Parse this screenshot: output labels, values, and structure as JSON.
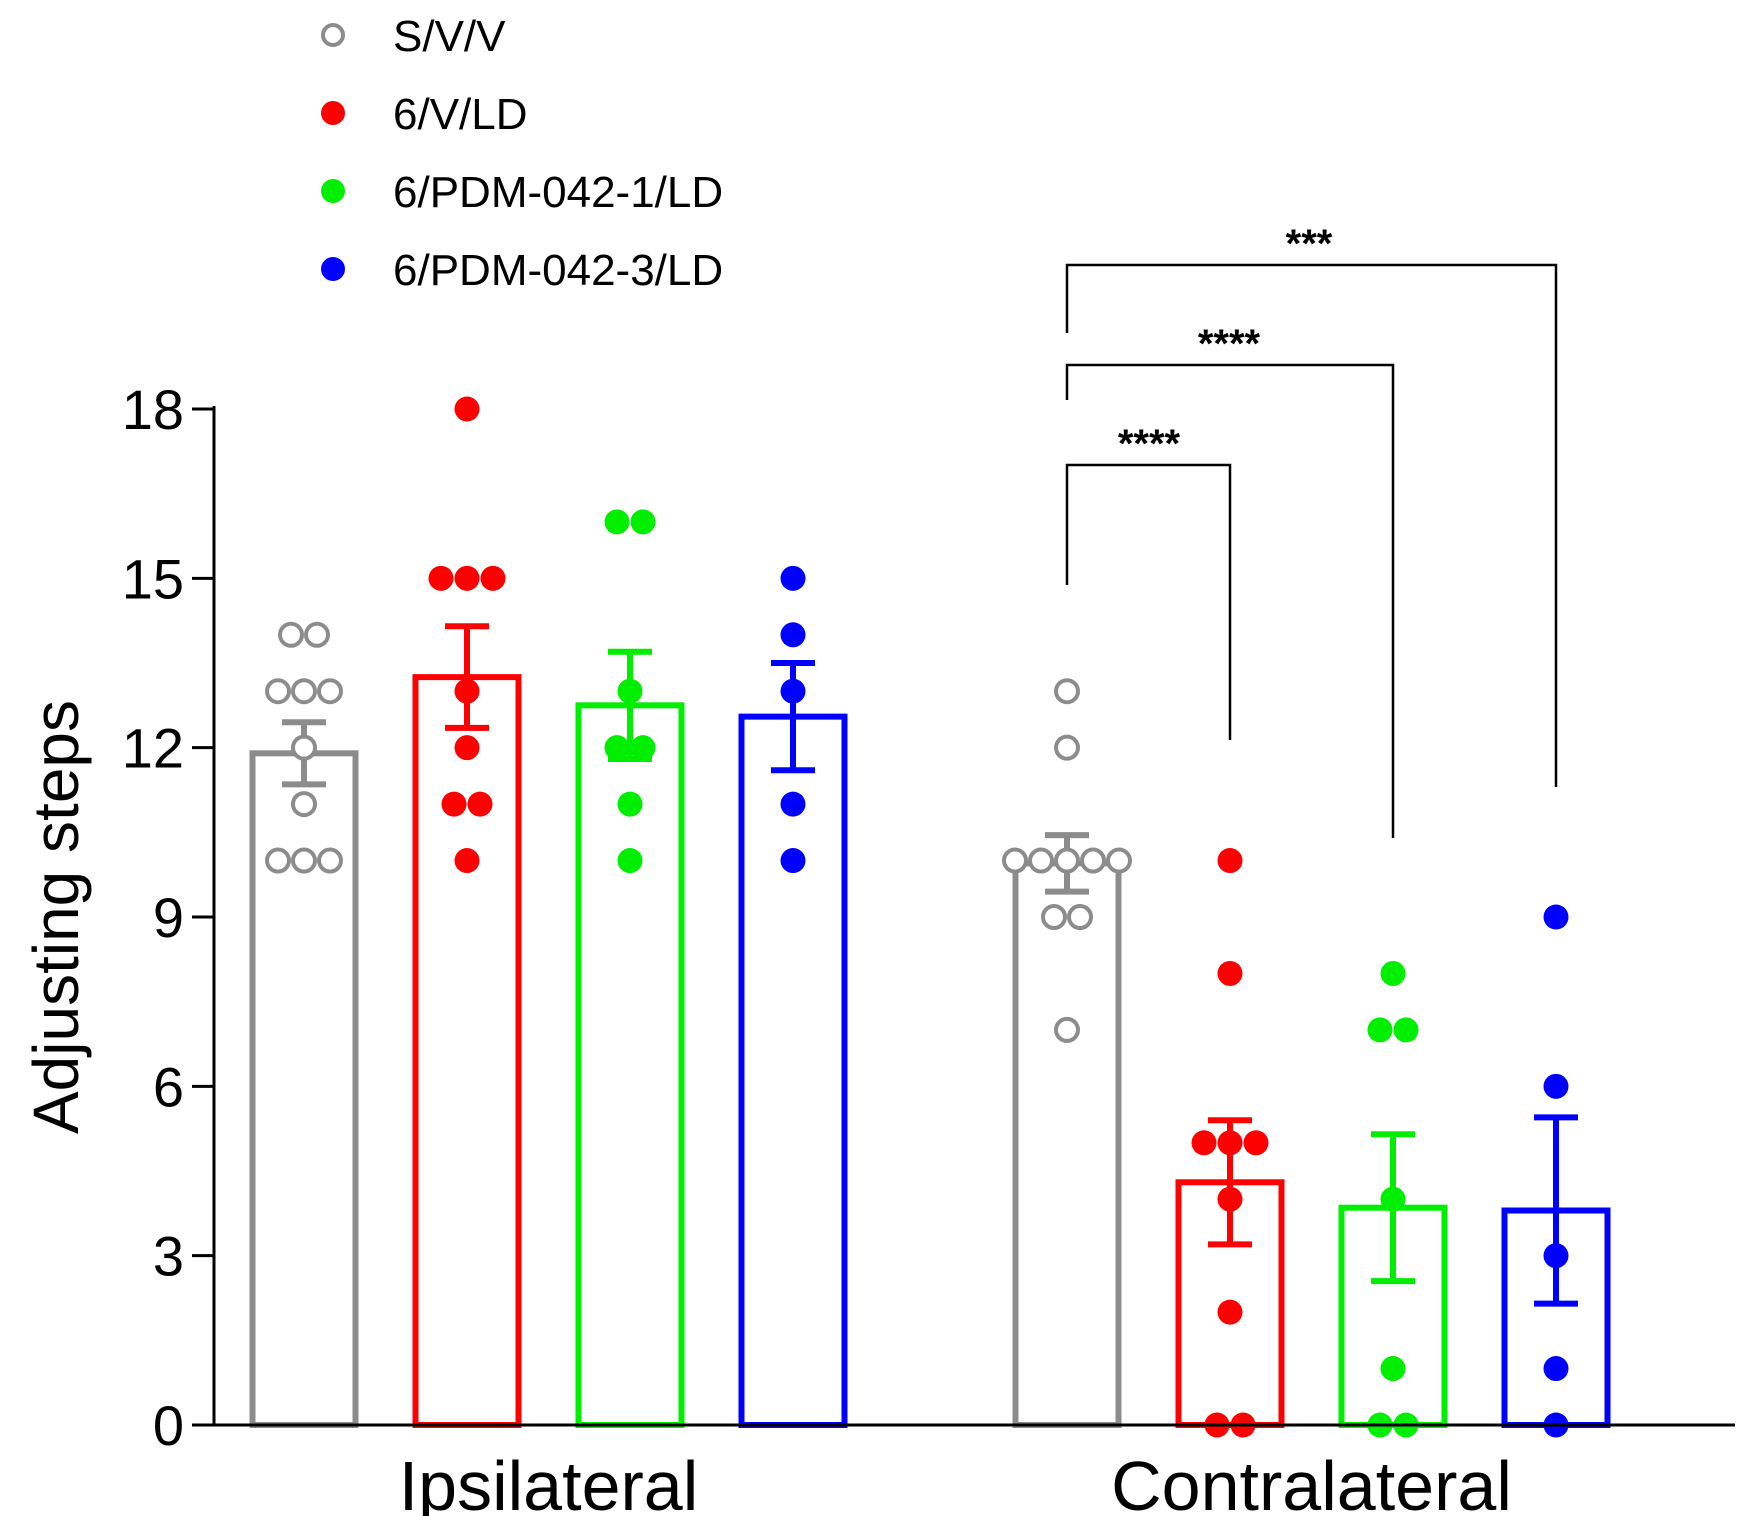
{
  "chart_data": {
    "type": "bar",
    "title": "",
    "xlabel": "",
    "ylabel": "Adjusting steps",
    "ylim": [
      0,
      18
    ],
    "yticks": [
      0,
      3,
      6,
      9,
      12,
      15,
      18
    ],
    "categories": [
      "Ipsilateral",
      "Contralateral"
    ],
    "legend_position": "top-left",
    "series": [
      {
        "name": "S/V/V",
        "color": "#8c8c8c",
        "marker": "open-circle",
        "means": [
          11.9,
          9.95
        ],
        "sem": [
          0.55,
          0.5
        ],
        "points": [
          [
            14,
            14,
            13,
            13,
            13,
            12,
            11,
            10,
            10,
            10
          ],
          [
            13,
            12,
            10,
            10,
            10,
            10,
            10,
            9,
            9,
            7
          ]
        ]
      },
      {
        "name": "6/V/LD",
        "color": "#ff0000",
        "marker": "filled-circle",
        "means": [
          13.25,
          4.3
        ],
        "sem": [
          0.9,
          1.1
        ],
        "points": [
          [
            18,
            15,
            15,
            15,
            13,
            12,
            11,
            11,
            10
          ],
          [
            10,
            8,
            5,
            5,
            5,
            4,
            2,
            0,
            0
          ]
        ]
      },
      {
        "name": "6/PDM-042-1/LD",
        "color": "#00ee00",
        "marker": "filled-circle",
        "means": [
          12.75,
          3.85
        ],
        "sem": [
          0.95,
          1.3
        ],
        "points": [
          [
            16,
            16,
            13,
            12,
            12,
            11,
            10
          ],
          [
            8,
            7,
            7,
            4,
            1,
            0,
            0
          ]
        ]
      },
      {
        "name": "6/PDM-042-3/LD",
        "color": "#0000ff",
        "marker": "filled-circle",
        "means": [
          12.55,
          3.8
        ],
        "sem": [
          0.95,
          1.65
        ],
        "points": [
          [
            15,
            14,
            13,
            11,
            10
          ],
          [
            9,
            6,
            3,
            1,
            0
          ]
        ]
      }
    ],
    "annotations": [
      {
        "group": "Contralateral",
        "from": "S/V/V",
        "to": "6/V/LD",
        "label": "****"
      },
      {
        "group": "Contralateral",
        "from": "S/V/V",
        "to": "6/PDM-042-1/LD",
        "label": "****"
      },
      {
        "group": "Contralateral",
        "from": "S/V/V",
        "to": "6/PDM-042-3/LD",
        "label": "***"
      }
    ]
  }
}
